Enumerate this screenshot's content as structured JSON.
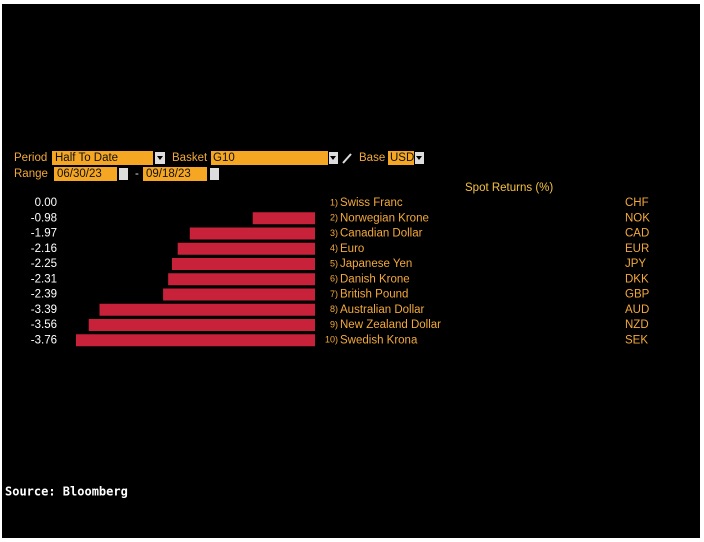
{
  "controls": {
    "period_label": "Period",
    "period": "Half To Date",
    "basket_label": "Basket",
    "basket": "G10",
    "base_label": "Base",
    "base": "USD",
    "range_label": "Range",
    "start": "06/30/23",
    "separator": "-",
    "end": "09/18/23"
  },
  "chart_data": {
    "type": "bar",
    "orientation": "horizontal",
    "title": "Spot Returns (%)",
    "color": "#c8213a",
    "ranks": [
      "1)",
      "2)",
      "3)",
      "4)",
      "5)",
      "6)",
      "7)",
      "8)",
      "9)",
      "10)"
    ],
    "categories": [
      "Swiss Franc",
      "Norwegian Krone",
      "Canadian Dollar",
      "Euro",
      "Japanese Yen",
      "Danish Krone",
      "British Pound",
      "Australian Dollar",
      "New Zealand Dollar",
      "Swedish Krona"
    ],
    "codes": [
      "CHF",
      "NOK",
      "CAD",
      "EUR",
      "JPY",
      "DKK",
      "GBP",
      "AUD",
      "NZD",
      "SEK"
    ],
    "values": [
      0,
      -0.98,
      -1.97,
      -2.16,
      -2.25,
      -2.31,
      -2.39,
      -3.39,
      -3.56,
      -3.76
    ],
    "value_labels": [
      "0.00",
      "-0.98",
      "-1.97",
      "-2.16",
      "-2.25",
      "-2.31",
      "-2.39",
      "-3.39",
      "-3.56",
      "-3.76"
    ]
  },
  "source": "Source: Bloomberg"
}
